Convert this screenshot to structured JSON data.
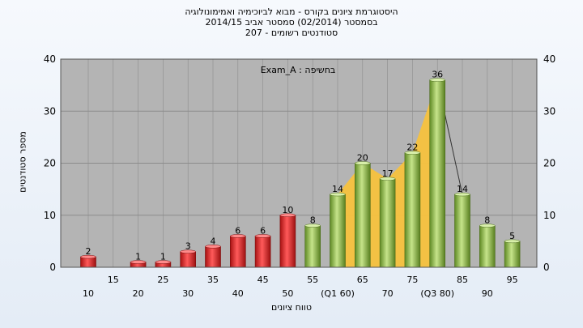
{
  "chart_data": {
    "type": "bar",
    "title_lines": [
      "היסטוגרמת ציונים בקורס - מבוא לביוכימיה ואמימונולוגיה",
      "בסמסטר  (02/2014)  סמסטר אביב 2014/15",
      "סטודנטים רשומים - 207"
    ],
    "annotation": "בחשיפה : Exam_A",
    "ylabel": "מספר סטודנטים",
    "xlabel": "טווח ציונים",
    "ylim": [
      0,
      40
    ],
    "yticks": [
      0,
      10,
      20,
      30,
      40
    ],
    "grid": true,
    "categories": [
      "10",
      "15",
      "20",
      "25",
      "30",
      "35",
      "40",
      "45",
      "50",
      "55",
      "(Q1 60)",
      "65",
      "70",
      "75",
      "(Q3 80)",
      "85",
      "90",
      "95"
    ],
    "values": [
      2,
      0,
      1,
      1,
      3,
      4,
      6,
      6,
      10,
      8,
      14,
      20,
      17,
      22,
      36,
      14,
      8,
      5
    ],
    "value_labels": [
      "2",
      "",
      "1",
      "1",
      "3",
      "4",
      "6",
      "6",
      "10",
      "8",
      "14",
      "20",
      "17",
      "22",
      "36",
      "14",
      "8",
      "5"
    ],
    "colors": {
      "fail": "#d42a2a",
      "pass": "#8fb84a",
      "quartile_area": "#f7c23e",
      "plot_bg": "#b4b4b4",
      "grid": "#8c8c8c"
    },
    "fail_threshold": "55"
  }
}
